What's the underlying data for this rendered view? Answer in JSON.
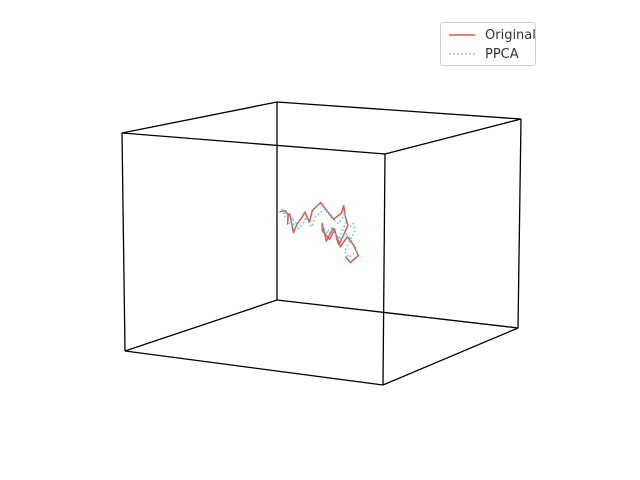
{
  "chart_data": {
    "type": "line",
    "projection": "3d",
    "axes_visible": false,
    "grid": false,
    "legend": {
      "position": "top-right"
    },
    "axis_ranges": {
      "x": [
        -1,
        1
      ],
      "y": [
        -1,
        1
      ],
      "z": [
        -1,
        1
      ]
    },
    "series": [
      {
        "name": "Original",
        "color": "#e05a4e",
        "style": "solid",
        "points": [
          [
            -0.7,
            0.55,
            0.02
          ],
          [
            -0.62,
            0.5,
            0.05
          ],
          [
            -0.55,
            0.42,
            0.03
          ],
          [
            -0.52,
            0.36,
            -0.04
          ],
          [
            -0.48,
            0.3,
            0.06
          ],
          [
            -0.42,
            0.22,
            0.1
          ],
          [
            -0.38,
            0.18,
            0.03
          ],
          [
            -0.33,
            0.12,
            -0.05
          ],
          [
            -0.28,
            0.08,
            0.04
          ],
          [
            -0.22,
            0.05,
            0.12
          ],
          [
            -0.18,
            0.02,
            0.18
          ],
          [
            -0.12,
            -0.02,
            0.1
          ],
          [
            -0.08,
            -0.05,
            0.22
          ],
          [
            -0.02,
            -0.04,
            0.3
          ],
          [
            0.02,
            -0.02,
            0.22
          ],
          [
            0.05,
            0.02,
            0.14
          ],
          [
            0.1,
            0.04,
            0.2
          ],
          [
            0.14,
            0.0,
            0.28
          ],
          [
            0.18,
            -0.05,
            0.2
          ],
          [
            0.22,
            -0.08,
            0.12
          ],
          [
            0.2,
            -0.12,
            0.02
          ],
          [
            0.16,
            -0.1,
            -0.06
          ],
          [
            0.12,
            -0.06,
            -0.02
          ],
          [
            0.08,
            -0.02,
            0.06
          ],
          [
            0.04,
            0.02,
            0.0
          ],
          [
            0.0,
            0.05,
            -0.06
          ],
          [
            -0.04,
            0.02,
            0.02
          ],
          [
            -0.02,
            -0.02,
            0.1
          ],
          [
            0.02,
            -0.06,
            0.04
          ],
          [
            0.06,
            -0.1,
            -0.04
          ],
          [
            0.1,
            -0.12,
            0.04
          ],
          [
            0.15,
            -0.16,
            0.1
          ],
          [
            0.2,
            -0.2,
            0.04
          ],
          [
            0.25,
            -0.24,
            -0.04
          ],
          [
            0.3,
            -0.28,
            0.02
          ],
          [
            0.35,
            -0.32,
            0.08
          ],
          [
            0.42,
            -0.36,
            0.02
          ],
          [
            0.48,
            -0.4,
            -0.06
          ],
          [
            0.44,
            -0.44,
            -0.12
          ],
          [
            0.38,
            -0.4,
            -0.08
          ]
        ]
      },
      {
        "name": "PPCA",
        "color": "#4cc9d6",
        "style": "dotted",
        "points": [
          [
            -0.66,
            0.52,
            0.06
          ],
          [
            -0.6,
            0.46,
            0.0
          ],
          [
            -0.56,
            0.4,
            0.08
          ],
          [
            -0.5,
            0.34,
            0.02
          ],
          [
            -0.46,
            0.28,
            -0.02
          ],
          [
            -0.4,
            0.24,
            0.06
          ],
          [
            -0.36,
            0.16,
            0.0
          ],
          [
            -0.3,
            0.1,
            0.06
          ],
          [
            -0.26,
            0.06,
            0.0
          ],
          [
            -0.2,
            0.04,
            0.08
          ],
          [
            -0.16,
            0.0,
            0.14
          ],
          [
            -0.1,
            -0.03,
            0.06
          ],
          [
            -0.06,
            -0.04,
            0.16
          ],
          [
            0.0,
            -0.02,
            0.24
          ],
          [
            0.04,
            0.0,
            0.16
          ],
          [
            0.08,
            0.03,
            0.1
          ],
          [
            0.12,
            0.02,
            0.16
          ],
          [
            0.16,
            -0.02,
            0.22
          ],
          [
            0.2,
            -0.06,
            0.16
          ],
          [
            0.18,
            -0.1,
            0.06
          ],
          [
            0.14,
            -0.08,
            -0.02
          ],
          [
            0.1,
            -0.04,
            0.02
          ],
          [
            0.06,
            0.0,
            0.04
          ],
          [
            0.02,
            0.03,
            -0.02
          ],
          [
            -0.02,
            0.01,
            0.04
          ],
          [
            0.0,
            -0.04,
            0.08
          ],
          [
            0.04,
            -0.08,
            0.02
          ],
          [
            0.08,
            -0.11,
            0.06
          ],
          [
            0.13,
            -0.14,
            0.1
          ],
          [
            0.18,
            -0.18,
            0.06
          ],
          [
            0.23,
            -0.22,
            0.02
          ],
          [
            0.28,
            -0.26,
            0.06
          ],
          [
            0.33,
            -0.3,
            0.1
          ],
          [
            0.4,
            -0.34,
            0.04
          ],
          [
            0.46,
            -0.38,
            -0.02
          ],
          [
            0.42,
            -0.42,
            -0.08
          ],
          [
            0.36,
            -0.38,
            -0.04
          ],
          [
            0.4,
            -0.3,
            0.14
          ],
          [
            0.34,
            -0.22,
            0.18
          ],
          [
            0.28,
            -0.18,
            0.12
          ]
        ]
      }
    ]
  }
}
